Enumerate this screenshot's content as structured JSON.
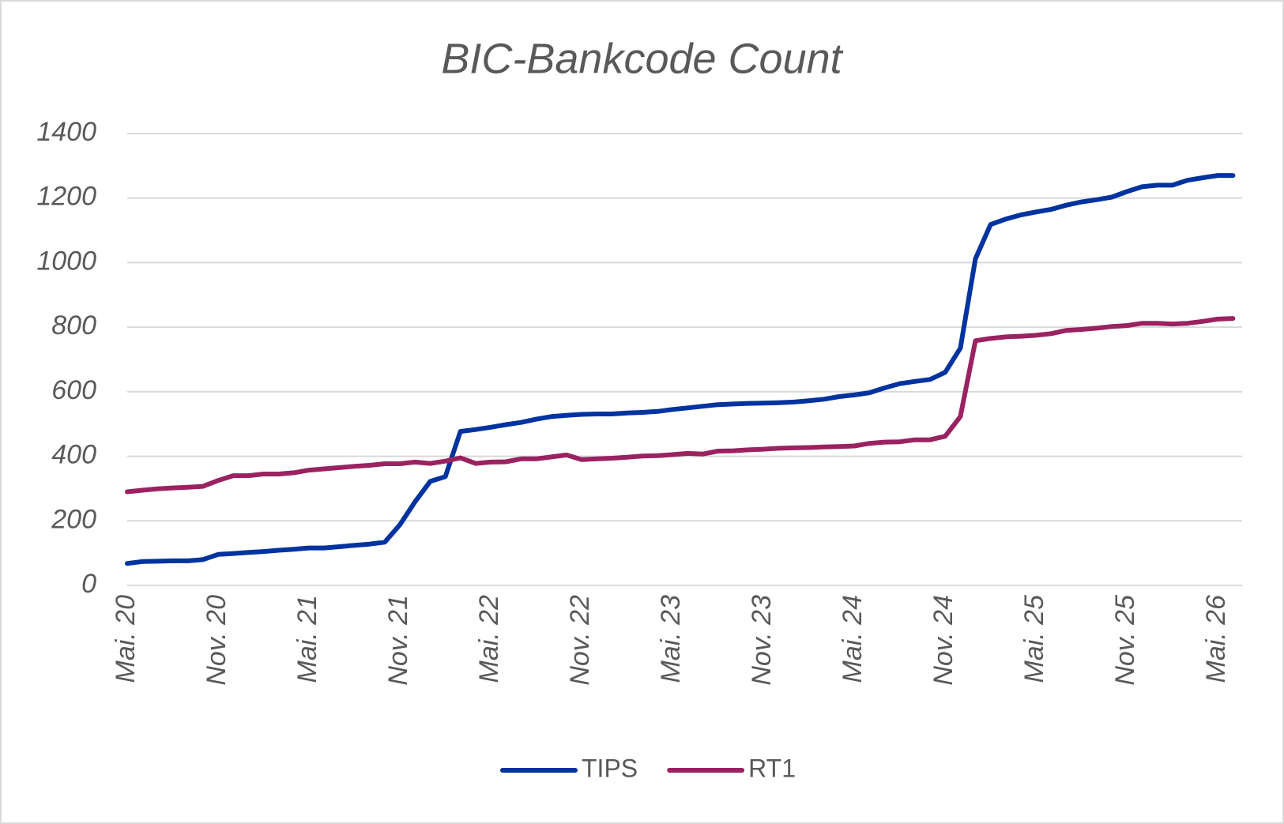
{
  "chart_data": {
    "type": "line",
    "title": "BIC-Bankcode Count",
    "categories": [
      "Mai. 20",
      null,
      null,
      null,
      null,
      null,
      "Nov. 20",
      null,
      null,
      null,
      null,
      null,
      "Mai. 21",
      null,
      null,
      null,
      null,
      null,
      "Nov. 21",
      null,
      null,
      null,
      null,
      null,
      "Mai. 22",
      null,
      null,
      null,
      null,
      null,
      "Nov. 22",
      null,
      null,
      null,
      null,
      null,
      "Mai. 23",
      null,
      null,
      null,
      null,
      null,
      "Nov. 23",
      null,
      null,
      null,
      null,
      null,
      "Mai. 24",
      null,
      null,
      null,
      null,
      null,
      "Nov. 24",
      null,
      null,
      null,
      null,
      null,
      "Mai. 25",
      null,
      null,
      null,
      null,
      null,
      "Nov. 25",
      null,
      null,
      null,
      null,
      null,
      "Mai. 26",
      null
    ],
    "series": [
      {
        "name": "TIPS",
        "color": "#0033a0",
        "values": [
          68,
          74,
          75,
          76,
          76,
          80,
          96,
          99,
          102,
          105,
          109,
          112,
          116,
          116,
          120,
          124,
          128,
          134,
          188,
          259,
          322,
          337,
          477,
          483,
          490,
          498,
          505,
          515,
          523,
          527,
          530,
          531,
          531,
          534,
          536,
          539,
          545,
          550,
          555,
          560,
          562,
          564,
          565,
          566,
          568,
          572,
          577,
          585,
          590,
          597,
          612,
          625,
          632,
          638,
          660,
          735,
          1012,
          1118,
          1135,
          1148,
          1157,
          1165,
          1178,
          1188,
          1195,
          1203,
          1220,
          1235,
          1240,
          1240,
          1255,
          1263,
          1270,
          1270
        ]
      },
      {
        "name": "RT1",
        "color": "#9b2260",
        "values": [
          290,
          295,
          299,
          302,
          304,
          307,
          325,
          340,
          340,
          345,
          345,
          349,
          357,
          361,
          365,
          369,
          372,
          377,
          377,
          382,
          378,
          385,
          395,
          378,
          382,
          383,
          392,
          392,
          398,
          404,
          390,
          392,
          394,
          397,
          401,
          402,
          405,
          409,
          407,
          416,
          417,
          420,
          422,
          425,
          426,
          427,
          429,
          430,
          432,
          440,
          444,
          445,
          451,
          451,
          462,
          523,
          758,
          765,
          770,
          772,
          775,
          780,
          790,
          793,
          797,
          802,
          805,
          812,
          812,
          810,
          812,
          818,
          825,
          827
        ]
      }
    ],
    "ylim": [
      0,
      1400
    ],
    "yticks": [
      0,
      200,
      400,
      600,
      800,
      1000,
      1200,
      1400
    ],
    "grid": true,
    "legend": "bottom"
  }
}
